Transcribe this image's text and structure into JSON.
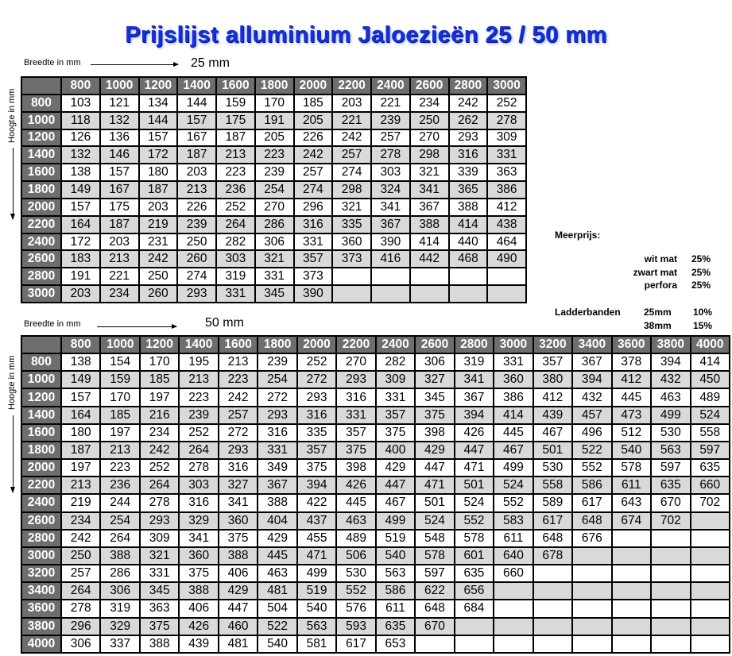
{
  "title": "Prijslijst alluminium Jaloezieën 25 / 50 mm",
  "colors": {
    "title": "#1530d8",
    "header_bg": "#6e6e6e",
    "alt_row": "#d9d9d9"
  },
  "table25": {
    "width_label": "Breedte in mm",
    "height_label": "Hoogte in mm",
    "size_label": "25 mm",
    "columns": [
      "800",
      "1000",
      "1200",
      "1400",
      "1600",
      "1800",
      "2000",
      "2200",
      "2400",
      "2600",
      "2800",
      "3000"
    ],
    "rows": [
      {
        "height": "800",
        "prices": [
          "103",
          "121",
          "134",
          "144",
          "159",
          "170",
          "185",
          "203",
          "221",
          "234",
          "242",
          "252"
        ]
      },
      {
        "height": "1000",
        "prices": [
          "118",
          "132",
          "144",
          "157",
          "175",
          "191",
          "205",
          "221",
          "239",
          "250",
          "262",
          "278"
        ]
      },
      {
        "height": "1200",
        "prices": [
          "126",
          "136",
          "157",
          "167",
          "187",
          "205",
          "226",
          "242",
          "257",
          "270",
          "293",
          "309"
        ]
      },
      {
        "height": "1400",
        "prices": [
          "132",
          "146",
          "172",
          "187",
          "213",
          "223",
          "242",
          "257",
          "278",
          "298",
          "316",
          "331"
        ]
      },
      {
        "height": "1600",
        "prices": [
          "138",
          "157",
          "180",
          "203",
          "223",
          "239",
          "257",
          "274",
          "303",
          "321",
          "339",
          "363"
        ]
      },
      {
        "height": "1800",
        "prices": [
          "149",
          "167",
          "187",
          "213",
          "236",
          "254",
          "274",
          "298",
          "324",
          "341",
          "365",
          "386"
        ]
      },
      {
        "height": "2000",
        "prices": [
          "157",
          "175",
          "203",
          "226",
          "252",
          "270",
          "296",
          "321",
          "341",
          "367",
          "388",
          "412"
        ]
      },
      {
        "height": "2200",
        "prices": [
          "164",
          "187",
          "219",
          "239",
          "264",
          "286",
          "316",
          "335",
          "367",
          "388",
          "414",
          "438"
        ]
      },
      {
        "height": "2400",
        "prices": [
          "172",
          "203",
          "231",
          "250",
          "282",
          "306",
          "331",
          "360",
          "390",
          "414",
          "440",
          "464"
        ]
      },
      {
        "height": "2600",
        "prices": [
          "183",
          "213",
          "242",
          "260",
          "303",
          "321",
          "357",
          "373",
          "416",
          "442",
          "468",
          "490"
        ]
      },
      {
        "height": "2800",
        "prices": [
          "191",
          "221",
          "250",
          "274",
          "319",
          "331",
          "373",
          "",
          "",
          "",
          "",
          ""
        ]
      },
      {
        "height": "3000",
        "prices": [
          "203",
          "234",
          "260",
          "293",
          "331",
          "345",
          "390",
          "",
          "",
          "",
          "",
          ""
        ]
      }
    ]
  },
  "table50": {
    "width_label": "Breedte in mm",
    "height_label": "Hoogte in mm",
    "size_label": "50 mm",
    "columns": [
      "800",
      "1000",
      "1200",
      "1400",
      "1600",
      "1800",
      "2000",
      "2200",
      "2400",
      "2600",
      "2800",
      "3000",
      "3200",
      "3400",
      "3600",
      "3800",
      "4000"
    ],
    "rows": [
      {
        "height": "800",
        "prices": [
          "138",
          "154",
          "170",
          "195",
          "213",
          "239",
          "252",
          "270",
          "282",
          "306",
          "319",
          "331",
          "357",
          "367",
          "378",
          "394",
          "414"
        ]
      },
      {
        "height": "1000",
        "prices": [
          "149",
          "159",
          "185",
          "213",
          "223",
          "254",
          "272",
          "293",
          "309",
          "327",
          "341",
          "360",
          "380",
          "394",
          "412",
          "432",
          "450"
        ]
      },
      {
        "height": "1200",
        "prices": [
          "157",
          "170",
          "197",
          "223",
          "242",
          "272",
          "293",
          "316",
          "331",
          "345",
          "367",
          "386",
          "412",
          "432",
          "445",
          "463",
          "489"
        ]
      },
      {
        "height": "1400",
        "prices": [
          "164",
          "185",
          "216",
          "239",
          "257",
          "293",
          "316",
          "331",
          "357",
          "375",
          "394",
          "414",
          "439",
          "457",
          "473",
          "499",
          "524"
        ]
      },
      {
        "height": "1600",
        "prices": [
          "180",
          "197",
          "234",
          "252",
          "272",
          "316",
          "335",
          "357",
          "375",
          "398",
          "426",
          "445",
          "467",
          "496",
          "512",
          "530",
          "558"
        ]
      },
      {
        "height": "1800",
        "prices": [
          "187",
          "213",
          "242",
          "264",
          "293",
          "331",
          "357",
          "375",
          "400",
          "429",
          "447",
          "467",
          "501",
          "522",
          "540",
          "563",
          "597"
        ]
      },
      {
        "height": "2000",
        "prices": [
          "197",
          "223",
          "252",
          "278",
          "316",
          "349",
          "375",
          "398",
          "429",
          "447",
          "471",
          "499",
          "530",
          "552",
          "578",
          "597",
          "635"
        ]
      },
      {
        "height": "2200",
        "prices": [
          "213",
          "236",
          "264",
          "303",
          "327",
          "367",
          "394",
          "426",
          "447",
          "471",
          "501",
          "524",
          "558",
          "586",
          "611",
          "635",
          "660"
        ]
      },
      {
        "height": "2400",
        "prices": [
          "219",
          "244",
          "278",
          "316",
          "341",
          "388",
          "422",
          "445",
          "467",
          "501",
          "524",
          "552",
          "589",
          "617",
          "643",
          "670",
          "702"
        ]
      },
      {
        "height": "2600",
        "prices": [
          "234",
          "254",
          "293",
          "329",
          "360",
          "404",
          "437",
          "463",
          "499",
          "524",
          "552",
          "583",
          "617",
          "648",
          "674",
          "702",
          ""
        ]
      },
      {
        "height": "2800",
        "prices": [
          "242",
          "264",
          "309",
          "341",
          "375",
          "429",
          "455",
          "489",
          "519",
          "548",
          "578",
          "611",
          "648",
          "676",
          "",
          "",
          ""
        ]
      },
      {
        "height": "3000",
        "prices": [
          "250",
          "388",
          "321",
          "360",
          "388",
          "445",
          "471",
          "506",
          "540",
          "578",
          "601",
          "640",
          "678",
          "",
          "",
          "",
          ""
        ]
      },
      {
        "height": "3200",
        "prices": [
          "257",
          "286",
          "331",
          "375",
          "406",
          "463",
          "499",
          "530",
          "563",
          "597",
          "635",
          "660",
          "",
          "",
          "",
          "",
          ""
        ]
      },
      {
        "height": "3400",
        "prices": [
          "264",
          "306",
          "345",
          "388",
          "429",
          "481",
          "519",
          "552",
          "586",
          "622",
          "656",
          "",
          "",
          "",
          "",
          "",
          ""
        ]
      },
      {
        "height": "3600",
        "prices": [
          "278",
          "319",
          "363",
          "406",
          "447",
          "504",
          "540",
          "576",
          "611",
          "648",
          "684",
          "",
          "",
          "",
          "",
          "",
          ""
        ]
      },
      {
        "height": "3800",
        "prices": [
          "296",
          "329",
          "375",
          "426",
          "460",
          "522",
          "563",
          "593",
          "635",
          "670",
          "",
          "",
          "",
          "",
          "",
          "",
          ""
        ]
      },
      {
        "height": "4000",
        "prices": [
          "306",
          "337",
          "388",
          "439",
          "481",
          "540",
          "581",
          "617",
          "653",
          "",
          "",
          "",
          "",
          "",
          "",
          "",
          ""
        ]
      }
    ]
  },
  "surcharges": {
    "heading": "Meerprijs:",
    "items": [
      {
        "label": "wit mat",
        "value": "25%"
      },
      {
        "label": "zwart mat",
        "value": "25%"
      },
      {
        "label": "perfora",
        "value": "25%"
      }
    ],
    "ladder": {
      "label": "Ladderbanden",
      "items": [
        {
          "size": "25mm",
          "value": "10%"
        },
        {
          "size": "38mm",
          "value": "15%"
        }
      ]
    }
  }
}
